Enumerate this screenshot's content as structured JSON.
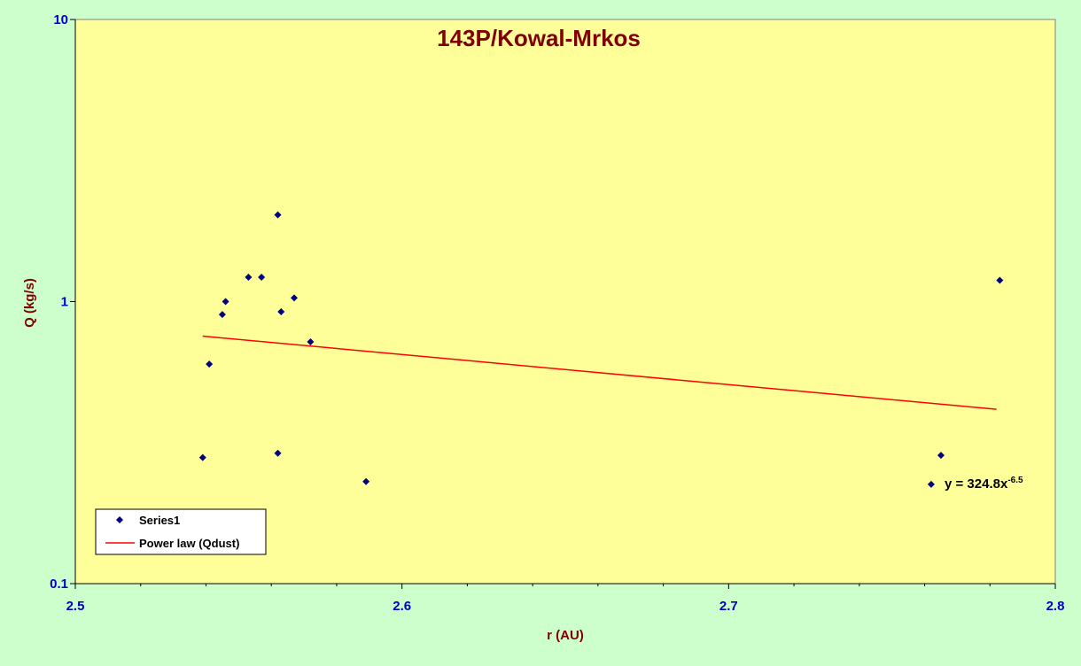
{
  "chart_data": {
    "type": "scatter",
    "title": "143P/Kowal-Mrkos",
    "xlabel": "r (AU)",
    "ylabel": "Q (kg/s)",
    "xlim": [
      2.5,
      2.8
    ],
    "ylim": [
      0.1,
      10
    ],
    "yscale": "log",
    "x_ticks": [
      "2.5",
      "2.6",
      "2.7",
      "2.8"
    ],
    "y_ticks": [
      "0.1",
      "1",
      "10"
    ],
    "grid": false,
    "legend_position": "bottom-left",
    "series": [
      {
        "name": "Series1",
        "type": "scatter",
        "color": "#000080",
        "x": [
          2.539,
          2.541,
          2.545,
          2.546,
          2.553,
          2.557,
          2.562,
          2.562,
          2.563,
          2.567,
          2.572,
          2.589,
          2.762,
          2.765,
          2.783
        ],
        "y": [
          0.28,
          0.6,
          0.9,
          1.0,
          1.22,
          1.22,
          2.03,
          0.29,
          0.92,
          1.03,
          0.72,
          0.23,
          0.225,
          0.285,
          1.19
        ]
      },
      {
        "name": "Power law (Qdust)",
        "type": "line",
        "color": "#ff0000",
        "x": [
          2.539,
          2.782
        ],
        "y": [
          0.754,
          0.415
        ]
      }
    ],
    "annotations": [
      {
        "label": "y = 324.8x",
        "exponent": "-6.5",
        "x": 2.768,
        "y": 0.225
      }
    ]
  }
}
